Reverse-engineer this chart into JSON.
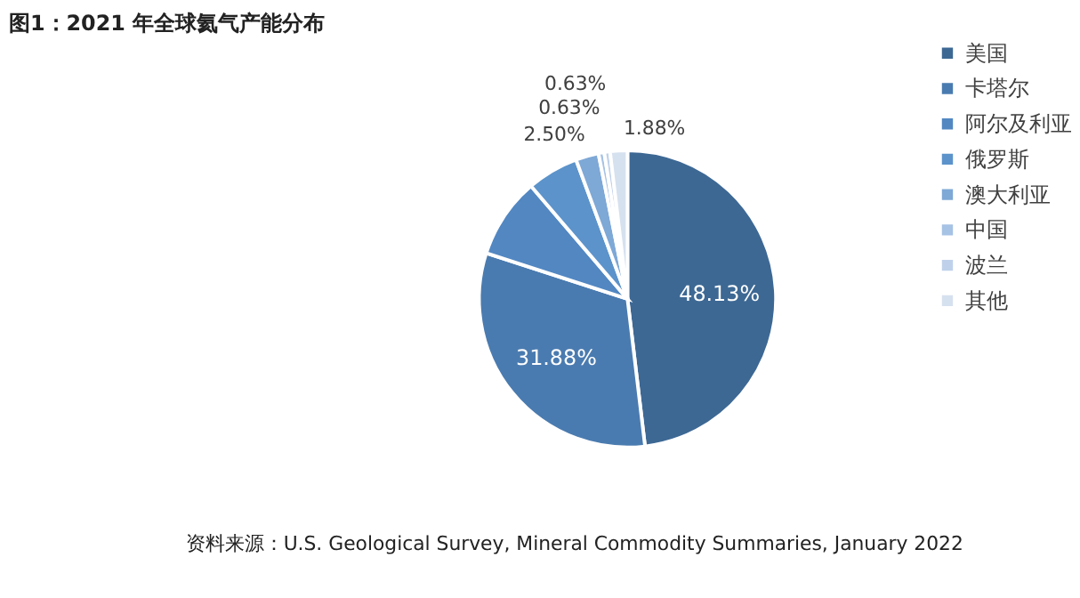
{
  "chart_data": {
    "type": "pie",
    "title": "图1：2021 年全球氦气产能分布",
    "categories": [
      "美国",
      "卡塔尔",
      "阿尔及利亚",
      "俄罗斯",
      "澳大利亚",
      "中国",
      "波兰",
      "其他"
    ],
    "values": [
      48.13,
      31.88,
      8.75,
      5.63,
      2.5,
      0.63,
      0.63,
      1.88
    ],
    "value_labels": [
      "48.13%",
      "31.88%",
      null,
      null,
      "2.50%",
      "0.63%",
      "0.63%",
      "1.88%"
    ],
    "colors": [
      "#3d6894",
      "#4a7bb0",
      "#5287c2",
      "#5c93cb",
      "#7ea8d6",
      "#a6c2e4",
      "#bfd1ea",
      "#d6e1ef"
    ],
    "legend": "right",
    "annotations": [
      "资料来源：U.S. Geological Survey, Mineral Commodity Summaries, January 2022"
    ]
  }
}
